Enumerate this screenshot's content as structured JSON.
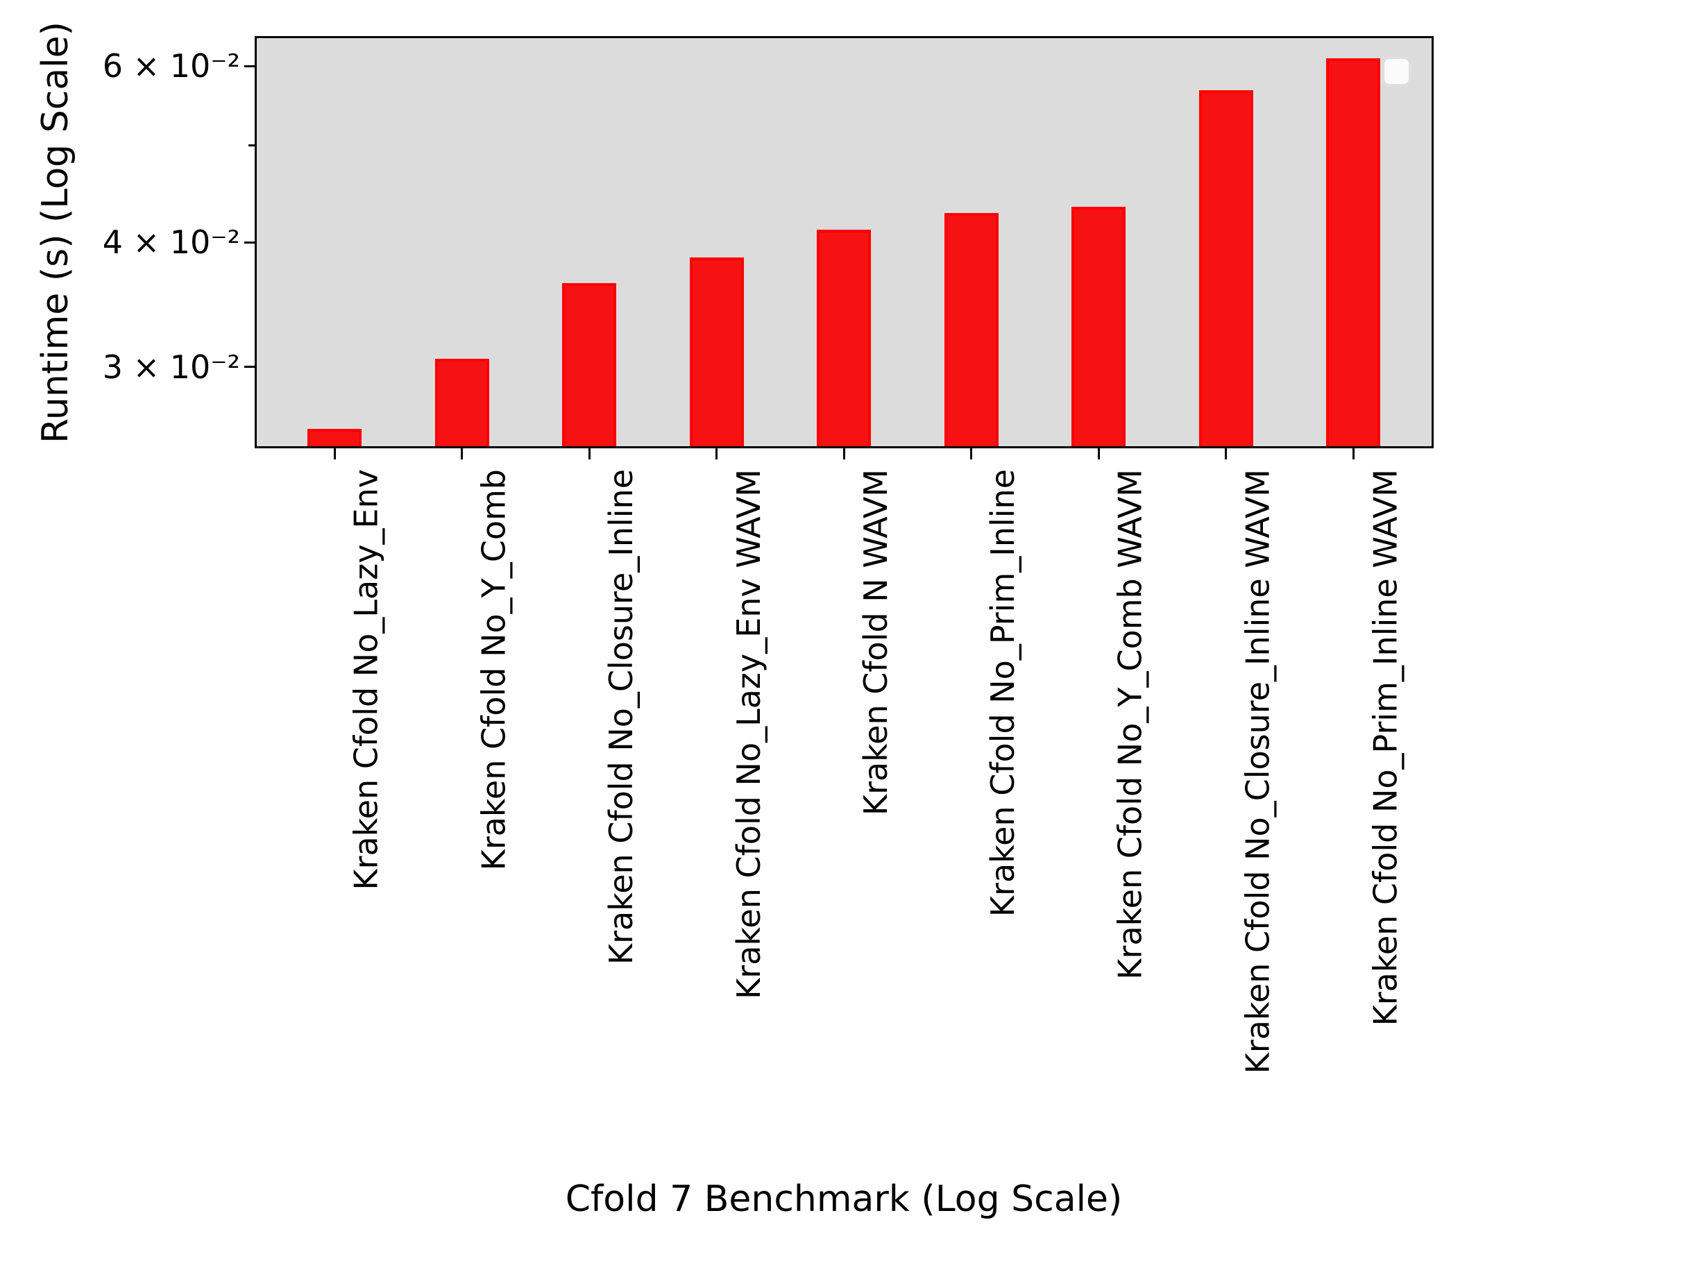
{
  "chart_data": {
    "type": "bar",
    "title": "",
    "xlabel": "Cfold 7 Benchmark (Log Scale)",
    "ylabel": "Runtime (s) (Log Scale)",
    "yscale": "log",
    "ylim": [
      0.025,
      0.064
    ],
    "grid": false,
    "categories": [
      "Kraken Cfold No_Lazy_Env",
      "Kraken Cfold No_Y_Comb",
      "Kraken Cfold No_Closure_Inline",
      "Kraken Cfold No_Lazy_Env WAVM",
      "Kraken Cfold N WAVM",
      "Kraken Cfold No_Prim_Inline",
      "Kraken Cfold No_Y_Comb WAVM",
      "Kraken Cfold No_Closure_Inline WAVM",
      "Kraken Cfold No_Prim_Inline WAVM"
    ],
    "values": [
      0.026,
      0.0306,
      0.0364,
      0.0386,
      0.0412,
      0.0428,
      0.0434,
      0.0568,
      0.0611
    ],
    "yticks_major": [
      {
        "value": 0.06,
        "label": "6 × 10⁻²"
      },
      {
        "value": 0.04,
        "label": "4 × 10⁻²"
      },
      {
        "value": 0.03,
        "label": "3 × 10⁻²"
      }
    ],
    "yticks_minor": [
      0.05
    ],
    "legend": {
      "visible": true,
      "position": "upper right",
      "entries": []
    },
    "colors": {
      "bar_fill": "#f61212",
      "bar_edge": "#fd0000",
      "plot_background": "#dcdcdc",
      "spine": "#000000",
      "text": "#000000"
    }
  }
}
